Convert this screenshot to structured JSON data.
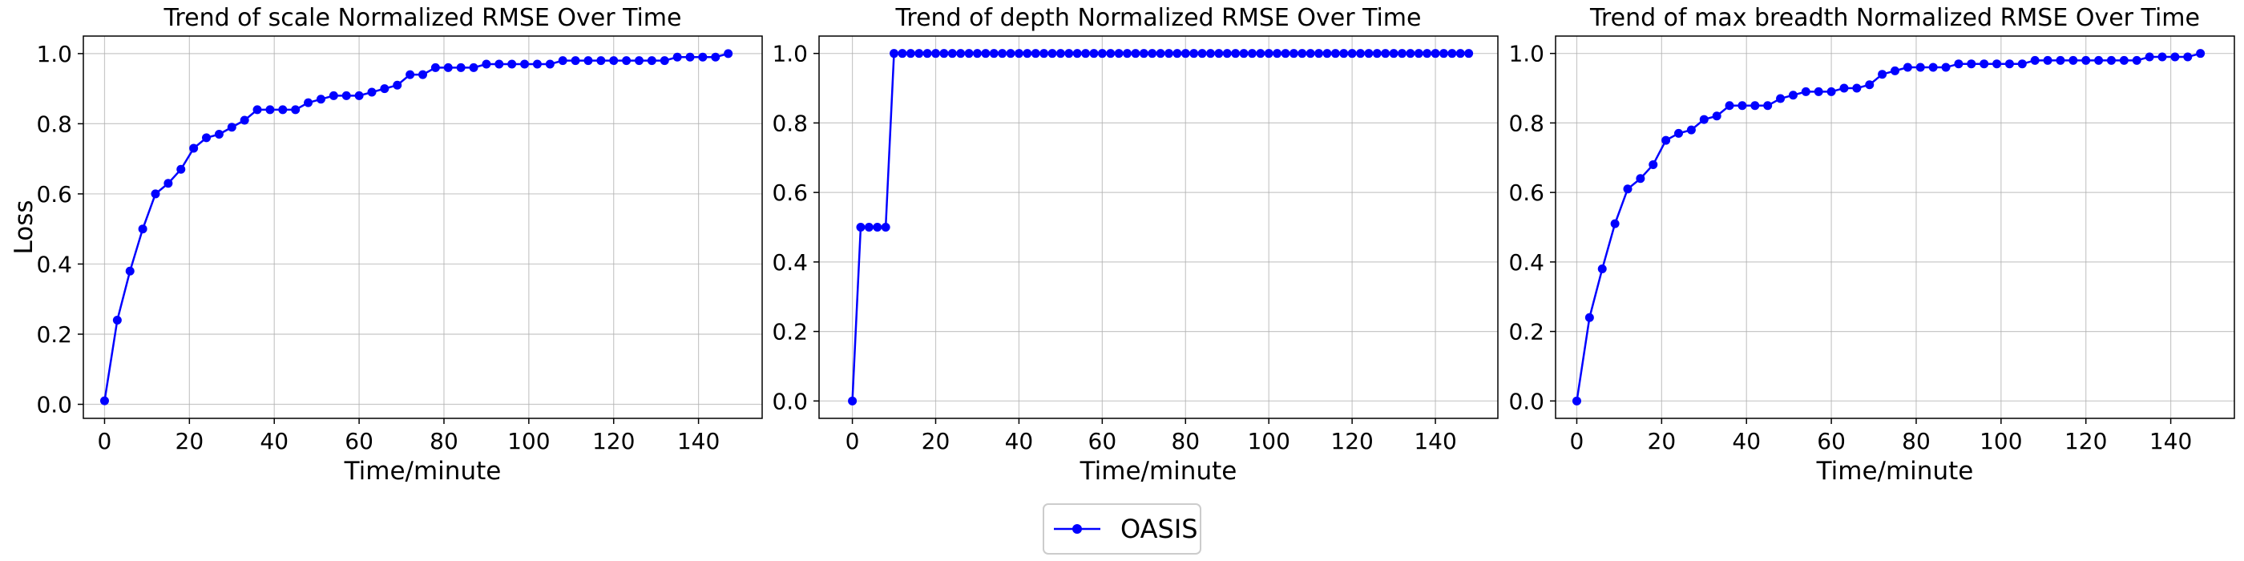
{
  "legend": {
    "label": "OASIS",
    "color": "#0000ff"
  },
  "chart_data": [
    {
      "type": "line",
      "title": "Trend of scale Normalized RMSE Over Time",
      "xlabel": "Time/minute",
      "ylabel": "Loss",
      "xlim": [
        -5,
        155
      ],
      "ylim": [
        -0.04,
        1.05
      ],
      "xticks": [
        0,
        20,
        40,
        60,
        80,
        100,
        120,
        140
      ],
      "yticks": [
        0.0,
        0.2,
        0.4,
        0.6,
        0.8,
        1.0
      ],
      "ytick_labels": [
        "0.0",
        "0.2",
        "0.4",
        "0.6",
        "0.8",
        "1.0"
      ],
      "grid": true,
      "series": [
        {
          "name": "OASIS",
          "color": "#0000ff",
          "x": [
            0,
            3,
            6,
            9,
            12,
            15,
            18,
            21,
            24,
            27,
            30,
            33,
            36,
            39,
            42,
            45,
            48,
            51,
            54,
            57,
            60,
            63,
            66,
            69,
            72,
            75,
            78,
            81,
            84,
            87,
            90,
            93,
            96,
            99,
            102,
            105,
            108,
            111,
            114,
            117,
            120,
            123,
            126,
            129,
            132,
            135,
            138,
            141,
            144,
            147
          ],
          "y": [
            0.01,
            0.24,
            0.38,
            0.5,
            0.6,
            0.63,
            0.67,
            0.73,
            0.76,
            0.77,
            0.79,
            0.81,
            0.84,
            0.84,
            0.84,
            0.84,
            0.86,
            0.87,
            0.88,
            0.88,
            0.88,
            0.89,
            0.9,
            0.91,
            0.94,
            0.94,
            0.96,
            0.96,
            0.96,
            0.96,
            0.97,
            0.97,
            0.97,
            0.97,
            0.97,
            0.97,
            0.98,
            0.98,
            0.98,
            0.98,
            0.98,
            0.98,
            0.98,
            0.98,
            0.98,
            0.99,
            0.99,
            0.99,
            0.99,
            1.0
          ]
        }
      ]
    },
    {
      "type": "line",
      "title": "Trend of depth Normalized RMSE Over Time",
      "xlabel": "Time/minute",
      "ylabel": "",
      "xlim": [
        -8,
        155
      ],
      "ylim": [
        -0.05,
        1.05
      ],
      "xticks": [
        0,
        20,
        40,
        60,
        80,
        100,
        120,
        140
      ],
      "yticks": [
        0.0,
        0.2,
        0.4,
        0.6,
        0.8,
        1.0
      ],
      "ytick_labels": [
        "0.0",
        "0.2",
        "0.4",
        "0.6",
        "0.8",
        "1.0"
      ],
      "grid": true,
      "series": [
        {
          "name": "OASIS",
          "color": "#0000ff",
          "x": [
            0,
            2,
            4,
            6,
            8,
            10,
            12,
            14,
            16,
            18,
            20,
            22,
            24,
            26,
            28,
            30,
            32,
            34,
            36,
            38,
            40,
            42,
            44,
            46,
            48,
            50,
            52,
            54,
            56,
            58,
            60,
            62,
            64,
            66,
            68,
            70,
            72,
            74,
            76,
            78,
            80,
            82,
            84,
            86,
            88,
            90,
            92,
            94,
            96,
            98,
            100,
            102,
            104,
            106,
            108,
            110,
            112,
            114,
            116,
            118,
            120,
            122,
            124,
            126,
            128,
            130,
            132,
            134,
            136,
            138,
            140,
            142,
            144,
            146,
            148
          ],
          "y": [
            0.0,
            0.5,
            0.5,
            0.5,
            0.5,
            1.0,
            1.0,
            1.0,
            1.0,
            1.0,
            1.0,
            1.0,
            1.0,
            1.0,
            1.0,
            1.0,
            1.0,
            1.0,
            1.0,
            1.0,
            1.0,
            1.0,
            1.0,
            1.0,
            1.0,
            1.0,
            1.0,
            1.0,
            1.0,
            1.0,
            1.0,
            1.0,
            1.0,
            1.0,
            1.0,
            1.0,
            1.0,
            1.0,
            1.0,
            1.0,
            1.0,
            1.0,
            1.0,
            1.0,
            1.0,
            1.0,
            1.0,
            1.0,
            1.0,
            1.0,
            1.0,
            1.0,
            1.0,
            1.0,
            1.0,
            1.0,
            1.0,
            1.0,
            1.0,
            1.0,
            1.0,
            1.0,
            1.0,
            1.0,
            1.0,
            1.0,
            1.0,
            1.0,
            1.0,
            1.0,
            1.0,
            1.0,
            1.0,
            1.0,
            1.0
          ]
        }
      ]
    },
    {
      "type": "line",
      "title": "Trend of max breadth Normalized RMSE Over Time",
      "xlabel": "Time/minute",
      "ylabel": "",
      "xlim": [
        -5,
        155
      ],
      "ylim": [
        -0.05,
        1.05
      ],
      "xticks": [
        0,
        20,
        40,
        60,
        80,
        100,
        120,
        140
      ],
      "yticks": [
        0.0,
        0.2,
        0.4,
        0.6,
        0.8,
        1.0
      ],
      "ytick_labels": [
        "0.0",
        "0.2",
        "0.4",
        "0.6",
        "0.8",
        "1.0"
      ],
      "grid": true,
      "series": [
        {
          "name": "OASIS",
          "color": "#0000ff",
          "x": [
            0,
            3,
            6,
            9,
            12,
            15,
            18,
            21,
            24,
            27,
            30,
            33,
            36,
            39,
            42,
            45,
            48,
            51,
            54,
            57,
            60,
            63,
            66,
            69,
            72,
            75,
            78,
            81,
            84,
            87,
            90,
            93,
            96,
            99,
            102,
            105,
            108,
            111,
            114,
            117,
            120,
            123,
            126,
            129,
            132,
            135,
            138,
            141,
            144,
            147
          ],
          "y": [
            0.0,
            0.24,
            0.38,
            0.51,
            0.61,
            0.64,
            0.68,
            0.75,
            0.77,
            0.78,
            0.81,
            0.82,
            0.85,
            0.85,
            0.85,
            0.85,
            0.87,
            0.88,
            0.89,
            0.89,
            0.89,
            0.9,
            0.9,
            0.91,
            0.94,
            0.95,
            0.96,
            0.96,
            0.96,
            0.96,
            0.97,
            0.97,
            0.97,
            0.97,
            0.97,
            0.97,
            0.98,
            0.98,
            0.98,
            0.98,
            0.98,
            0.98,
            0.98,
            0.98,
            0.98,
            0.99,
            0.99,
            0.99,
            0.99,
            1.0
          ]
        }
      ]
    }
  ]
}
